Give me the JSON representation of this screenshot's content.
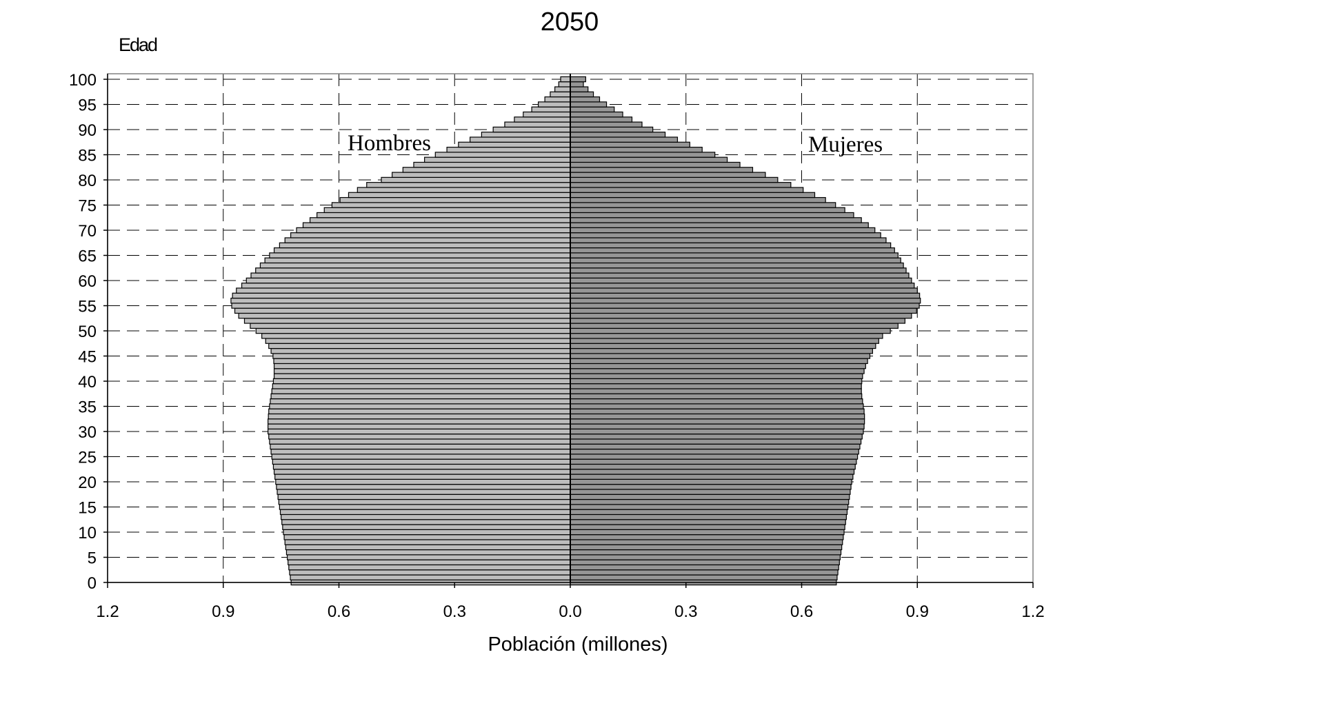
{
  "chart_data": {
    "type": "bar",
    "subtype": "population-pyramid",
    "title": "2050",
    "ylabel": "Edad",
    "xlabel": "Población (millones)",
    "xlim": [
      -1.2,
      1.2
    ],
    "ylim": [
      0,
      100
    ],
    "xticks": [
      "1.2",
      "0.9",
      "0.6",
      "0.3",
      "0.0",
      "0.3",
      "0.6",
      "0.9",
      "1.2"
    ],
    "yticks": [
      "0",
      "5",
      "10",
      "15",
      "20",
      "25",
      "30",
      "35",
      "40",
      "45",
      "50",
      "55",
      "60",
      "65",
      "70",
      "75",
      "80",
      "85",
      "90",
      "95",
      "100"
    ],
    "grid": "dashed",
    "annotations": {
      "left": "Hombres",
      "right": "Mujeres"
    },
    "colors": {
      "hombres": "#bdbdbd",
      "mujeres": "#969696",
      "edge": "#000000"
    },
    "ages": [
      0,
      1,
      2,
      3,
      4,
      5,
      6,
      7,
      8,
      9,
      10,
      11,
      12,
      13,
      14,
      15,
      16,
      17,
      18,
      19,
      20,
      21,
      22,
      23,
      24,
      25,
      26,
      27,
      28,
      29,
      30,
      31,
      32,
      33,
      34,
      35,
      36,
      37,
      38,
      39,
      40,
      41,
      42,
      43,
      44,
      45,
      46,
      47,
      48,
      49,
      50,
      51,
      52,
      53,
      54,
      55,
      56,
      57,
      58,
      59,
      60,
      61,
      62,
      63,
      64,
      65,
      66,
      67,
      68,
      69,
      70,
      71,
      72,
      73,
      74,
      75,
      76,
      77,
      78,
      79,
      80,
      81,
      82,
      83,
      84,
      85,
      86,
      87,
      88,
      89,
      90,
      91,
      92,
      93,
      94,
      95,
      96,
      97,
      98,
      99,
      100
    ],
    "series": [
      {
        "name": "Hombres",
        "values": [
          0.724,
          0.726,
          0.728,
          0.73,
          0.732,
          0.734,
          0.736,
          0.738,
          0.74,
          0.742,
          0.744,
          0.746,
          0.748,
          0.75,
          0.752,
          0.754,
          0.756,
          0.758,
          0.76,
          0.762,
          0.764,
          0.766,
          0.768,
          0.77,
          0.772,
          0.774,
          0.776,
          0.778,
          0.78,
          0.782,
          0.784,
          0.784,
          0.784,
          0.783,
          0.782,
          0.78,
          0.778,
          0.776,
          0.774,
          0.772,
          0.77,
          0.768,
          0.768,
          0.768,
          0.769,
          0.771,
          0.776,
          0.782,
          0.79,
          0.8,
          0.815,
          0.83,
          0.845,
          0.86,
          0.87,
          0.878,
          0.88,
          0.876,
          0.866,
          0.852,
          0.84,
          0.828,
          0.816,
          0.804,
          0.792,
          0.78,
          0.768,
          0.754,
          0.74,
          0.725,
          0.71,
          0.693,
          0.675,
          0.657,
          0.638,
          0.618,
          0.597,
          0.575,
          0.552,
          0.528,
          0.49,
          0.462,
          0.434,
          0.406,
          0.378,
          0.35,
          0.32,
          0.29,
          0.26,
          0.23,
          0.2,
          0.17,
          0.145,
          0.122,
          0.1,
          0.083,
          0.066,
          0.052,
          0.04,
          0.03,
          0.025
        ]
      },
      {
        "name": "Mujeres",
        "values": [
          0.69,
          0.692,
          0.694,
          0.696,
          0.698,
          0.7,
          0.702,
          0.704,
          0.706,
          0.708,
          0.71,
          0.712,
          0.714,
          0.716,
          0.718,
          0.72,
          0.722,
          0.724,
          0.726,
          0.728,
          0.73,
          0.733,
          0.736,
          0.739,
          0.742,
          0.745,
          0.748,
          0.751,
          0.754,
          0.757,
          0.76,
          0.762,
          0.763,
          0.763,
          0.762,
          0.76,
          0.758,
          0.756,
          0.755,
          0.755,
          0.756,
          0.758,
          0.762,
          0.766,
          0.771,
          0.777,
          0.784,
          0.792,
          0.8,
          0.81,
          0.83,
          0.85,
          0.868,
          0.885,
          0.898,
          0.905,
          0.908,
          0.906,
          0.9,
          0.892,
          0.885,
          0.878,
          0.871,
          0.864,
          0.857,
          0.85,
          0.841,
          0.831,
          0.819,
          0.805,
          0.79,
          0.773,
          0.755,
          0.735,
          0.712,
          0.688,
          0.662,
          0.634,
          0.604,
          0.572,
          0.538,
          0.506,
          0.473,
          0.44,
          0.407,
          0.375,
          0.342,
          0.31,
          0.278,
          0.246,
          0.214,
          0.186,
          0.16,
          0.136,
          0.114,
          0.094,
          0.076,
          0.06,
          0.046,
          0.034,
          0.04
        ]
      }
    ]
  }
}
